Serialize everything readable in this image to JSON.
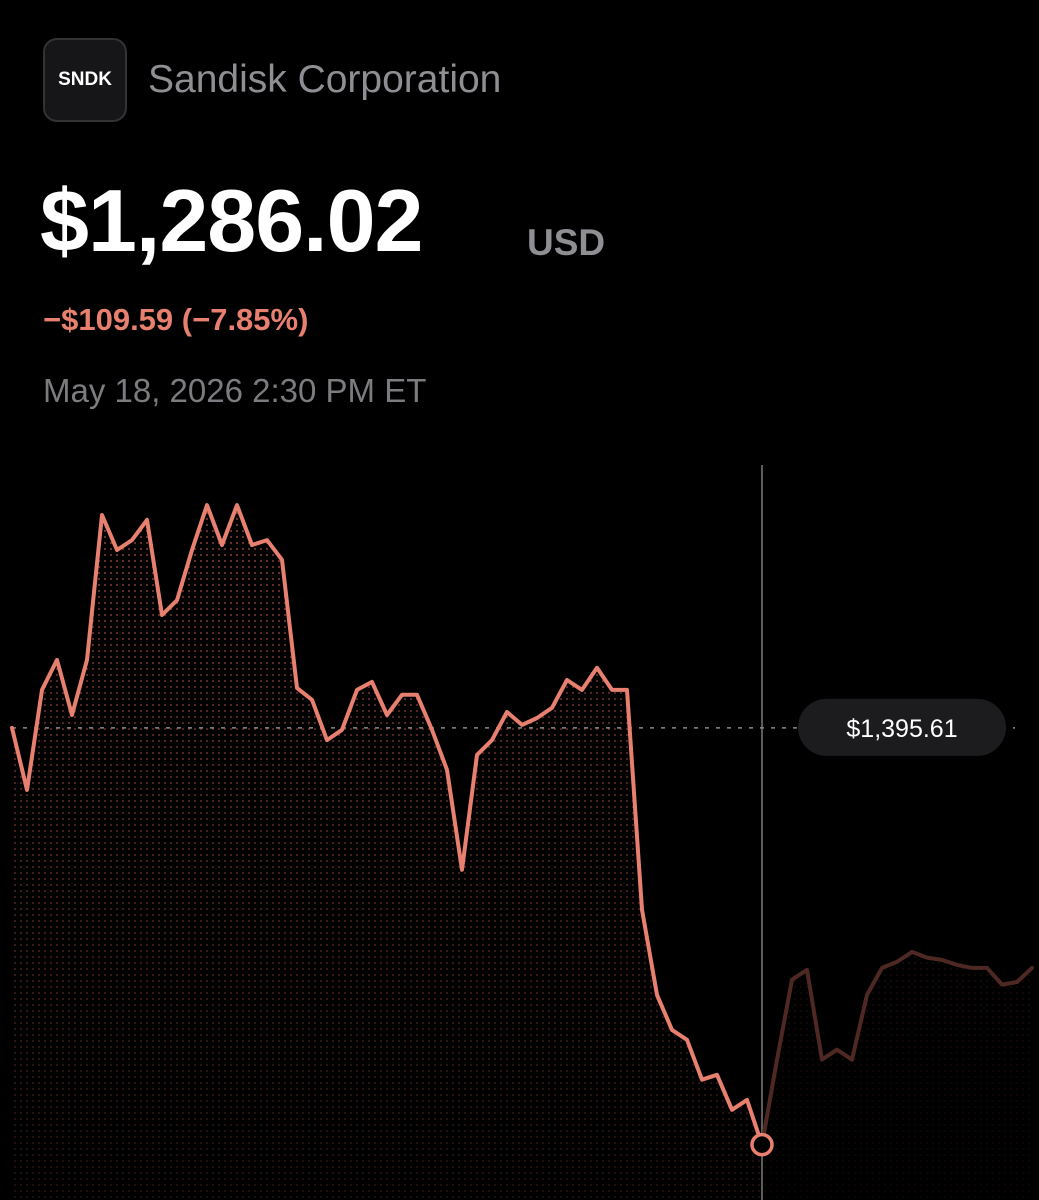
{
  "header": {
    "ticker": "SNDK",
    "name": "Sandisk Corporation",
    "price": "$1,286.02",
    "currency": "USD",
    "change": "−$109.59 (−7.85%)",
    "timestamp": "May 18, 2026 2:30 PM ET"
  },
  "chart_data": {
    "type": "line",
    "values": [
      1395.6,
      1379.3,
      1405.6,
      1413.5,
      1399.0,
      1413.5,
      1451.6,
      1442.4,
      1445.0,
      1450.3,
      1425.3,
      1429.2,
      1442.4,
      1454.2,
      1443.7,
      1454.2,
      1443.7,
      1445.0,
      1439.8,
      1406.1,
      1403.0,
      1392.4,
      1395.1,
      1405.6,
      1407.7,
      1399.0,
      1404.3,
      1404.3,
      1395.1,
      1384.6,
      1358.3,
      1388.5,
      1392.4,
      1399.8,
      1396.4,
      1398.2,
      1400.9,
      1408.2,
      1405.6,
      1411.4,
      1405.6,
      1405.6,
      1347.8,
      1325.4,
      1316.2,
      1313.6,
      1303.1,
      1304.4,
      1295.2,
      1297.8,
      1286.02,
      1308.4,
      1329.4,
      1332.0,
      1308.4,
      1311.0,
      1308.4,
      1325.4,
      1332.5,
      1334.1,
      1336.7,
      1335.2,
      1334.6,
      1333.3,
      1332.5,
      1332.5,
      1328.1,
      1328.8,
      1332.5
    ],
    "color": "#e8806f",
    "dim_color": "#4e2823",
    "ylim": [
      1272,
      1465
    ],
    "reference": {
      "value": 1395.61,
      "label": "$1,395.61"
    },
    "cursor_index": 50
  }
}
